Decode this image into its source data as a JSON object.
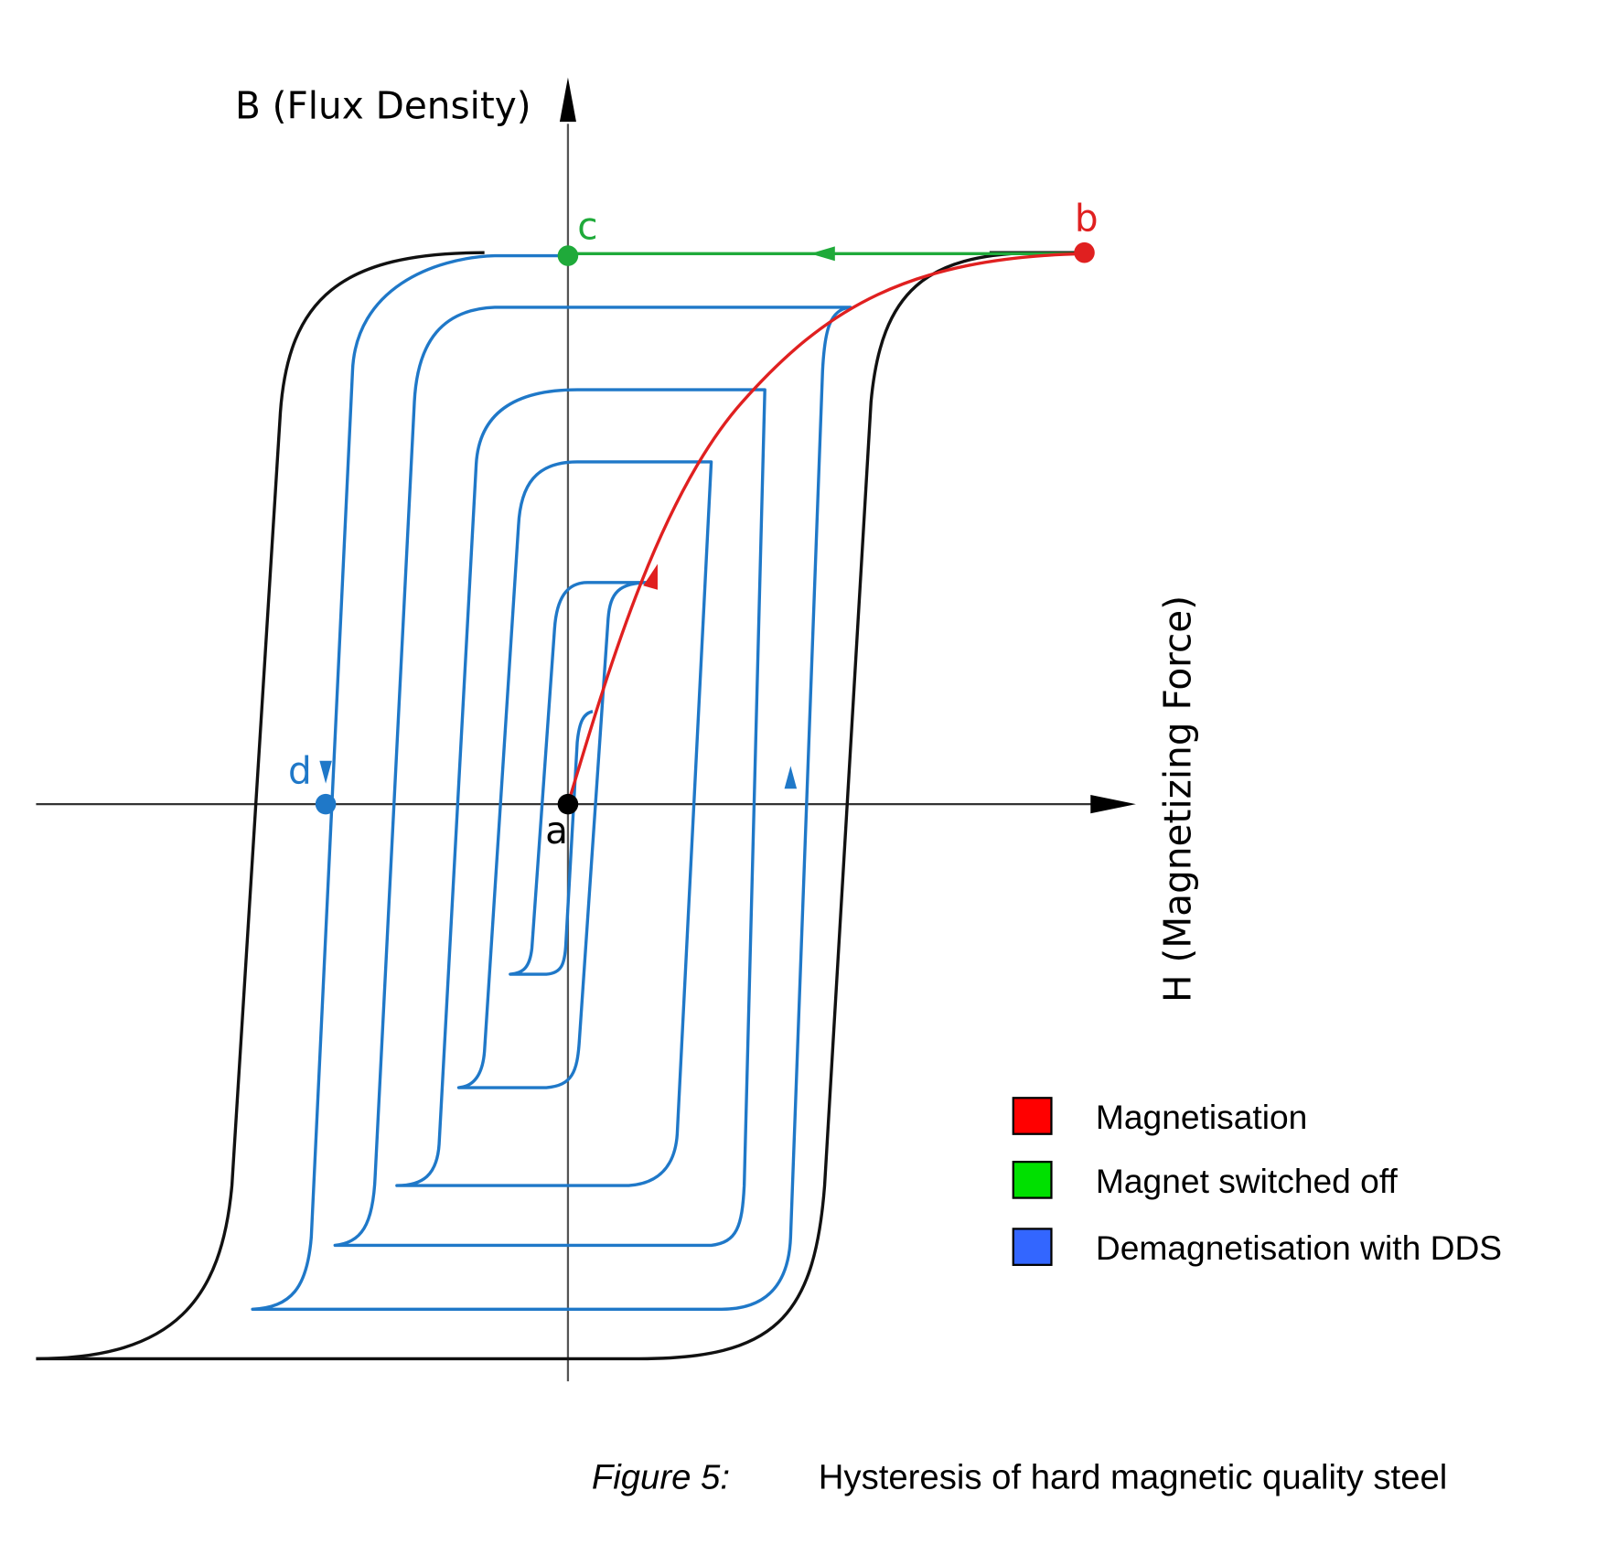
{
  "axes": {
    "y_label": "B (Flux Density)",
    "x_label": "H (Magnetizing Force)"
  },
  "points": [
    {
      "label": "a"
    },
    {
      "label": "b"
    },
    {
      "label": "c"
    },
    {
      "label": "d"
    }
  ],
  "legend": [
    {
      "label": "Magnetisation",
      "color": "#ff0000"
    },
    {
      "label": "Magnet switched off",
      "color": "#00e000"
    },
    {
      "label": "Demagnetisation with DDS",
      "color": "#3366ff"
    }
  ],
  "caption": {
    "number": "Figure 5:",
    "text": "Hysteresis of hard magnetic quality steel"
  }
}
